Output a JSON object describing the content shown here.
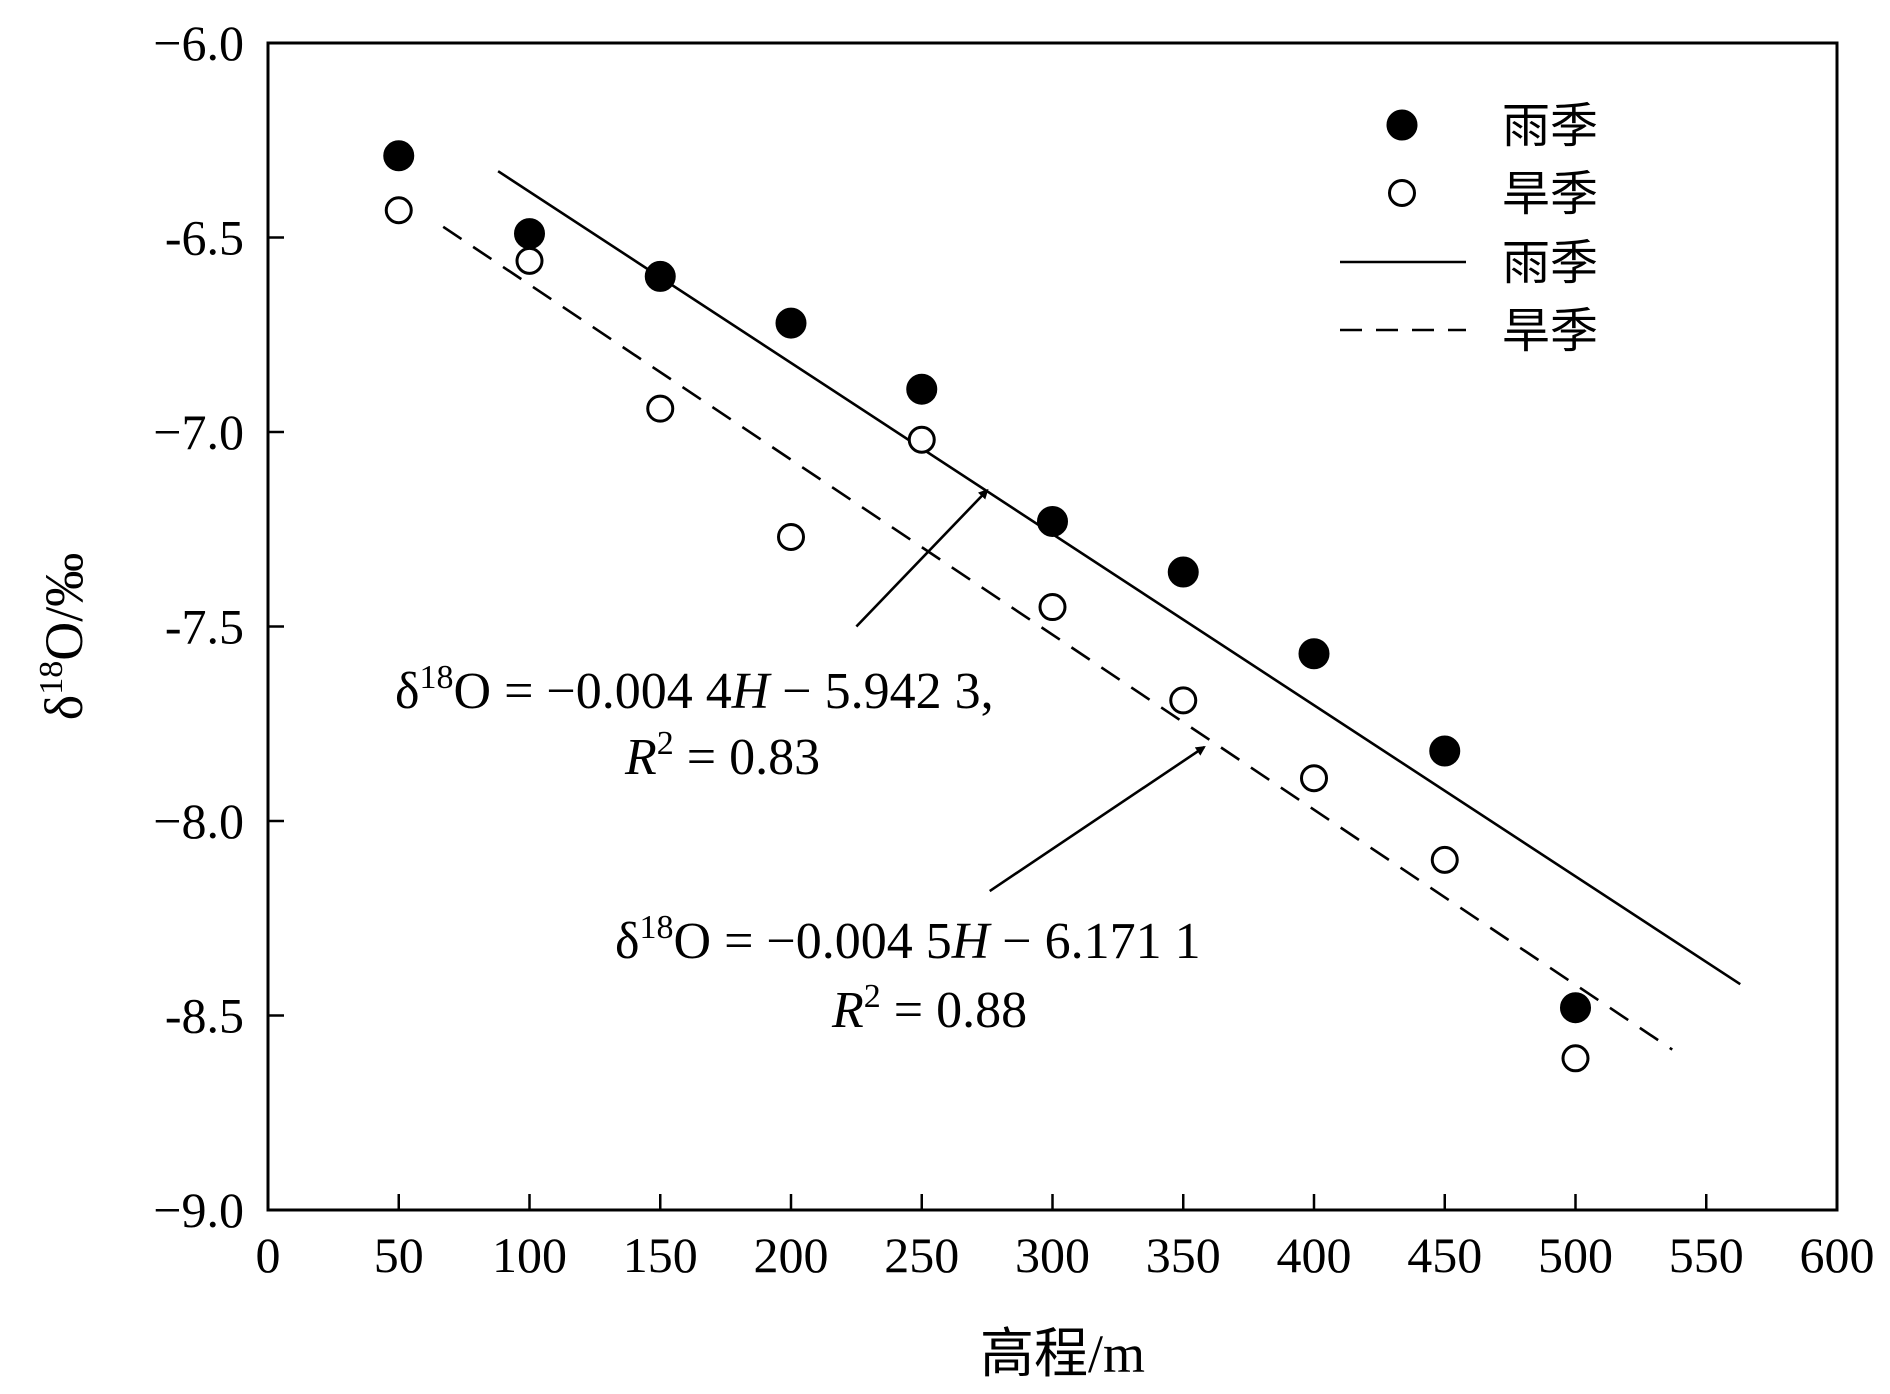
{
  "chart_data": {
    "type": "scatter",
    "xlabel": "高程/m",
    "ylabel_main": "δ",
    "ylabel_sup": "18",
    "ylabel_rest": "O/‰",
    "xlim": [
      0,
      600
    ],
    "ylim": [
      -9.0,
      -6.0
    ],
    "x_ticks": [
      0,
      50,
      100,
      150,
      200,
      250,
      300,
      350,
      400,
      450,
      500,
      550,
      600
    ],
    "x_tick_labels": [
      "0",
      "50",
      "100",
      "150",
      "200",
      "250",
      "300",
      "350",
      "400",
      "450",
      "500",
      "550",
      "600"
    ],
    "y_ticks": [
      -6.0,
      -6.5,
      -7.0,
      -7.5,
      -8.0,
      -8.5,
      -9.0
    ],
    "y_tick_labels": [
      "−6.0",
      "-6.5",
      "−7.0",
      "-7.5",
      "−8.0",
      "-8.5",
      "−9.0"
    ],
    "grid": false,
    "legend_position": "top-right",
    "legend": [
      {
        "label": "雨季",
        "kind": "marker-filled"
      },
      {
        "label": "旱季",
        "kind": "marker-open"
      },
      {
        "label": "雨季",
        "kind": "line-solid"
      },
      {
        "label": "旱季",
        "kind": "line-dashed"
      }
    ],
    "scatter_series": [
      {
        "name": "雨季",
        "marker": "filled-circle",
        "points": [
          [
            50,
            -6.29
          ],
          [
            100,
            -6.49
          ],
          [
            150,
            -6.6
          ],
          [
            200,
            -6.72
          ],
          [
            250,
            -6.89
          ],
          [
            300,
            -7.23
          ],
          [
            350,
            -7.36
          ],
          [
            400,
            -7.57
          ],
          [
            450,
            -7.82
          ],
          [
            500,
            -8.48
          ]
        ]
      },
      {
        "name": "旱季",
        "marker": "open-circle",
        "points": [
          [
            50,
            -6.43
          ],
          [
            100,
            -6.56
          ],
          [
            150,
            -6.94
          ],
          [
            200,
            -7.27
          ],
          [
            250,
            -7.02
          ],
          [
            300,
            -7.45
          ],
          [
            350,
            -7.69
          ],
          [
            400,
            -7.89
          ],
          [
            450,
            -8.1
          ],
          [
            500,
            -8.61
          ]
        ]
      }
    ],
    "fit_lines": [
      {
        "name": "雨季",
        "style": "solid",
        "x_range": [
          88,
          563
        ],
        "slope": -0.0044,
        "intercept": -5.9423
      },
      {
        "name": "旱季",
        "style": "dashed",
        "x_range": [
          67,
          537
        ],
        "slope": -0.0045,
        "intercept": -6.1711
      }
    ],
    "annotations": [
      {
        "line1_prefix": "δ",
        "line1_sup": "18",
        "line1_eq": "O = −0.004 4",
        "line1_var": "H",
        "line1_tail": " −  5.942 3,",
        "line2_var": "R",
        "line2_sup": "2",
        "line2_tail": " = 0.83",
        "arrow_from": [
          225,
          -7.5
        ],
        "arrow_to": [
          275,
          -7.15
        ]
      },
      {
        "line1_prefix": "δ",
        "line1_sup": "18",
        "line1_eq": "O = −0.004 5",
        "line1_var": "H",
        "line1_tail": " −  6.171 1",
        "line2_var": "R",
        "line2_sup": "2",
        "line2_tail": " =  0.88",
        "arrow_from": [
          276,
          -8.18
        ],
        "arrow_to": [
          358,
          -7.81
        ]
      }
    ]
  }
}
